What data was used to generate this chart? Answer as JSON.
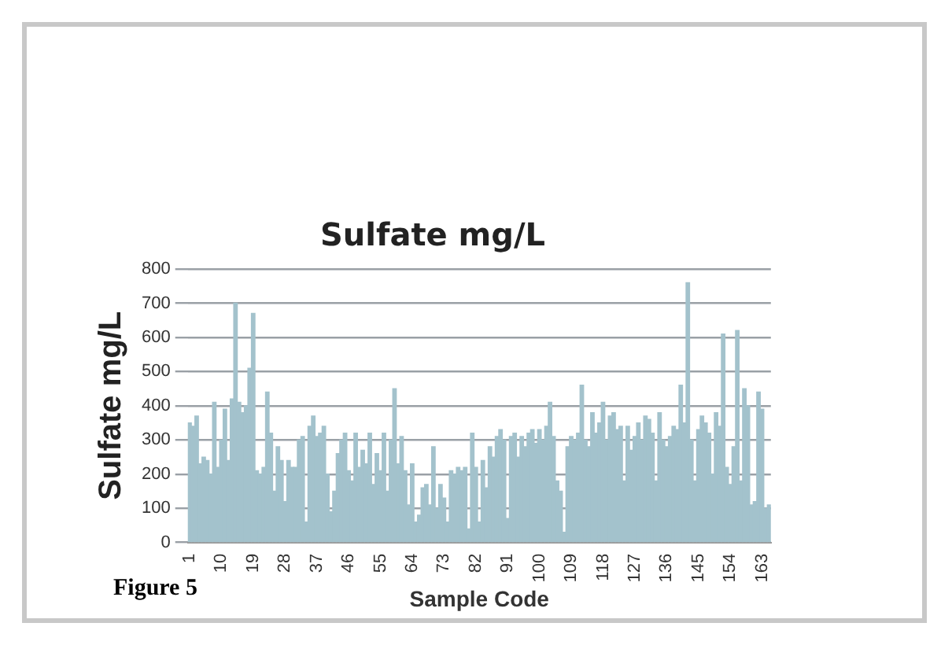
{
  "chart_data": {
    "type": "bar",
    "title": "Sulfate mg/L",
    "xlabel": "Sample Code",
    "ylabel": "Sulfate mg/L",
    "annotations": [
      "Figure 5"
    ],
    "categories": [
      "1",
      null,
      null,
      null,
      null,
      null,
      null,
      null,
      null,
      "10",
      null,
      null,
      null,
      null,
      null,
      null,
      null,
      null,
      "19",
      null,
      null,
      null,
      null,
      null,
      null,
      null,
      null,
      "28",
      null,
      null,
      null,
      null,
      null,
      null,
      null,
      null,
      "37",
      null,
      null,
      null,
      null,
      null,
      null,
      null,
      null,
      "46",
      null,
      null,
      null,
      null,
      null,
      null,
      null,
      null,
      "55",
      null,
      null,
      null,
      null,
      null,
      null,
      null,
      null,
      "64",
      null,
      null,
      null,
      null,
      null,
      null,
      null,
      null,
      "73",
      null,
      null,
      null,
      null,
      null,
      null,
      null,
      null,
      "82",
      null,
      null,
      null,
      null,
      null,
      null,
      null,
      null,
      "91",
      null,
      null,
      null,
      null,
      null,
      null,
      null,
      null,
      "100",
      null,
      null,
      null,
      null,
      null,
      null,
      null,
      null,
      "109",
      null,
      null,
      null,
      null,
      null,
      null,
      null,
      null,
      "118",
      null,
      null,
      null,
      null,
      null,
      null,
      null,
      null,
      "127",
      null,
      null,
      null,
      null,
      null,
      null,
      null,
      null,
      "136",
      null,
      null,
      null,
      null,
      null,
      null,
      null,
      null,
      "145",
      null,
      null,
      null,
      null,
      null,
      null,
      null,
      null,
      "154",
      null,
      null,
      null,
      null,
      null,
      null,
      null,
      null,
      "163",
      null,
      null
    ],
    "values": [
      350,
      340,
      370,
      230,
      250,
      240,
      200,
      410,
      220,
      300,
      390,
      240,
      420,
      700,
      410,
      380,
      400,
      510,
      670,
      210,
      200,
      220,
      440,
      320,
      150,
      280,
      240,
      120,
      240,
      220,
      220,
      300,
      310,
      60,
      340,
      370,
      310,
      320,
      340,
      200,
      90,
      150,
      260,
      300,
      320,
      210,
      180,
      320,
      220,
      270,
      230,
      320,
      170,
      260,
      210,
      320,
      150,
      300,
      450,
      230,
      310,
      210,
      110,
      230,
      60,
      80,
      160,
      170,
      110,
      280,
      100,
      170,
      130,
      60,
      210,
      200,
      220,
      210,
      220,
      40,
      320,
      220,
      60,
      240,
      160,
      280,
      250,
      310,
      330,
      300,
      70,
      310,
      320,
      250,
      310,
      280,
      320,
      330,
      290,
      330,
      300,
      340,
      410,
      310,
      180,
      150,
      30,
      280,
      310,
      300,
      320,
      460,
      300,
      280,
      380,
      320,
      350,
      410,
      300,
      370,
      380,
      330,
      340,
      180,
      340,
      270,
      310,
      350,
      300,
      370,
      360,
      320,
      180,
      380,
      300,
      280,
      310,
      340,
      330,
      460,
      350,
      760,
      300,
      180,
      330,
      370,
      350,
      320,
      200,
      380,
      340,
      610,
      220,
      170,
      280,
      620,
      180,
      450,
      400,
      110,
      120,
      440,
      390,
      100,
      110
    ],
    "color": "#a3c2cc",
    "ylim": [
      0,
      800
    ],
    "yticks": [
      0,
      100,
      200,
      300,
      400,
      500,
      600,
      700,
      800
    ],
    "grid": "y",
    "legend": false
  }
}
